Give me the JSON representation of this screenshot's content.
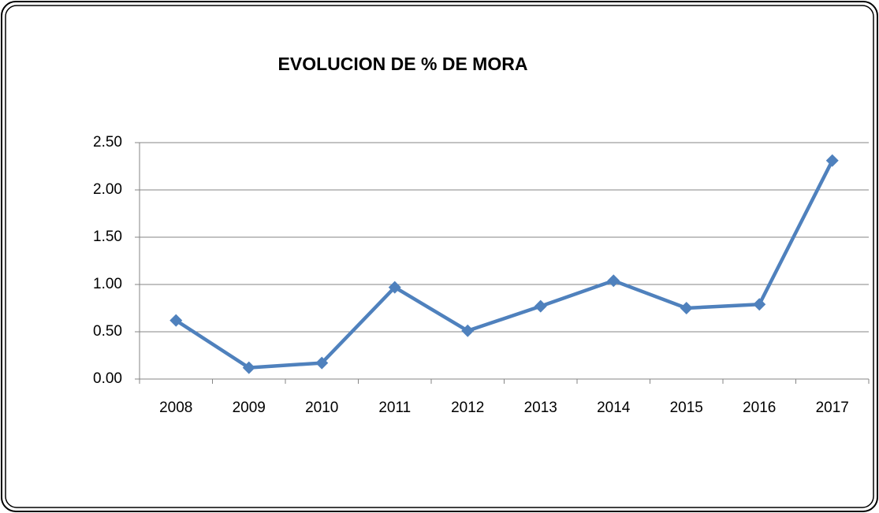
{
  "chart_data": {
    "type": "line",
    "title": "EVOLUCION DE % DE MORA",
    "categories": [
      "2008",
      "2009",
      "2010",
      "2011",
      "2012",
      "2013",
      "2014",
      "2015",
      "2016",
      "2017"
    ],
    "values": [
      0.62,
      0.12,
      0.17,
      0.97,
      0.51,
      0.77,
      1.04,
      0.75,
      0.79,
      2.31
    ],
    "color": "#4f81bd",
    "ylim": [
      0,
      2.5
    ],
    "yticks": [
      {
        "value": 0,
        "label": "0.00"
      },
      {
        "value": 0.5,
        "label": "0.50"
      },
      {
        "value": 1,
        "label": "1.00"
      },
      {
        "value": 1.5,
        "label": "1.50"
      },
      {
        "value": 2,
        "label": "2.00"
      },
      {
        "value": 2.5,
        "label": "2.50"
      }
    ],
    "grid": true
  }
}
